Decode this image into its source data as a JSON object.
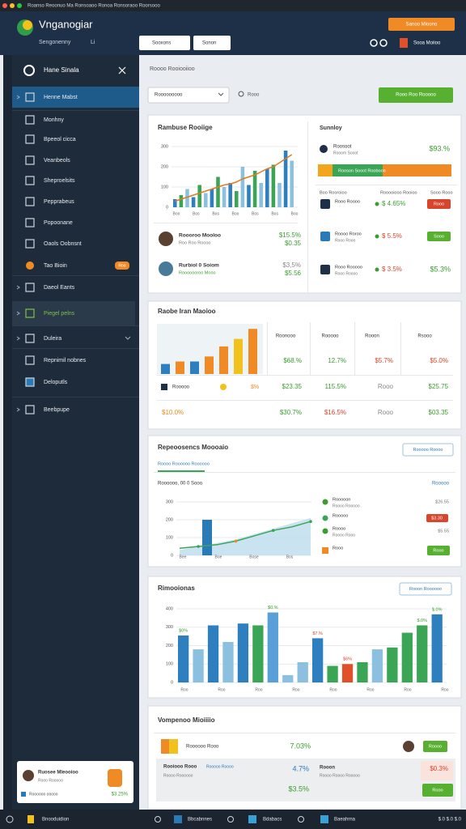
{
  "window": {
    "menu": "Roanso Reoonuo Ma Ronsoaoo Ronoa Ronsoraoo Roorsooo"
  },
  "header": {
    "title": "Vnganogiar",
    "subtitle": "Sengonenny",
    "subtitle_tag": "Li",
    "search": "Sooxons",
    "filter": "Sonon",
    "action": "Sanoo Mioono",
    "user": "Sooa Moiioo"
  },
  "sidebar": {
    "title": "Hane Sinala",
    "items": [
      "Henne Mabst",
      "Monhny",
      "Bpeeol cicca",
      "Veanbeols",
      "Sheproelsits",
      "Pepprabeus",
      "Popoonane",
      "Oaols Oobnsnt",
      "Tao Bioin",
      "Daeol Eants",
      "Piegel pelns",
      "Duleira",
      "Repnimil nobnes",
      "Deloputls",
      "Beebpupe"
    ],
    "badge": "Roo",
    "user": {
      "name": "Ruosee Mleooioo",
      "role": "Rooo Rooooo",
      "footer": "Roooooo ooooo",
      "value": "$3.25%"
    }
  },
  "main": {
    "breadcrumb": "Roooo Rooiooiioo",
    "select": "Rooooooooo",
    "search": "Rooo",
    "button": "Rooo Roo Rooooo"
  },
  "revenue": {
    "title": "Rambuse Rooiige",
    "ylim": [
      0,
      300
    ],
    "yticks": [
      0,
      100,
      200,
      300
    ],
    "categories": [
      "Boo",
      "Bos",
      "Bos",
      "Boo",
      "Bos",
      "Bos",
      "Boo"
    ],
    "values": [
      40,
      60,
      90,
      50,
      110,
      70,
      90,
      150,
      100,
      120,
      80,
      200,
      110,
      180,
      120,
      190,
      210,
      120,
      280,
      230
    ],
    "colors": [
      "#2e7fc0",
      "#3aa655",
      "#8cc0e0",
      "#2e7fc0",
      "#3aa655",
      "#8cc0e0",
      "#2e7fc0",
      "#3aa655",
      "#8cc0e0",
      "#2e7fc0",
      "#3aa655",
      "#8cc0e0",
      "#2e7fc0",
      "#3aa655",
      "#8cc0e0",
      "#2e7fc0",
      "#3aa655",
      "#8cc0e0",
      "#2e7fc0",
      "#8cc0e0"
    ],
    "line": [
      30,
      40,
      50,
      60,
      70,
      80,
      90,
      100,
      110,
      115,
      125,
      140,
      150,
      160,
      175,
      190,
      200,
      220,
      240,
      260
    ],
    "line_color": "#e07b24",
    "people": [
      {
        "name": "Roooroo Mooloo",
        "sub": "Roo Roo Roooo",
        "value": "$15.5%",
        "value2": "$0.35"
      },
      {
        "name": "Rurbiol 0 Soiom",
        "sub": "Rooooooroo Mooo",
        "value": "$3,5%",
        "value2": "$5.56"
      }
    ]
  },
  "summary": {
    "title": "Sunnloy",
    "top": {
      "name": "Roosoot",
      "sub": "Rooom Sooot",
      "value": "$93.%"
    },
    "progress": "Rooson Sooot Rooboon",
    "headers": [
      "Boo Rooroioo",
      "Rooooiooo Rooioo",
      "Sooo Rooo"
    ],
    "rows": [
      {
        "name": "Rooo Roooo",
        "value": "$ 4.65%",
        "button": "Rooo"
      },
      {
        "name": "Roooo Roroo",
        "sub": "Rooo Rooo",
        "value": "$ 5.5%",
        "button": "Sooo"
      },
      {
        "name": "Rooo Rooooo",
        "sub": "Rooo Roooo",
        "value": "$ 3.5%",
        "value2": "$5.3%"
      }
    ]
  },
  "market": {
    "title": "Raobe Iran Maoioo",
    "values": [
      20,
      25,
      25,
      35,
      55,
      70,
      90
    ],
    "colors": [
      "#2e7fc0",
      "#f08a24",
      "#2e7fc0",
      "#f08a24",
      "#f08a24",
      "#f3c11b",
      "#f08a24"
    ],
    "headers": [
      "Roonooo",
      "Rooooo",
      "Rooon",
      "Rsooo"
    ],
    "rows": [
      [
        null,
        "$68.%",
        "12.7%",
        "$5.7%",
        "$5.0%"
      ],
      [
        "Rooooo",
        "$23.35",
        "115.5%",
        "Rooo",
        "$25.75"
      ],
      [
        "$10.0%",
        "$30.7%",
        "$16.5%",
        "Rooo",
        "$03.35"
      ]
    ],
    "row2_tag": "$%"
  },
  "performance": {
    "title": "Repeoosencs Moooaio",
    "button": "Rooooo Roooo",
    "tab": "Roooo Roooooo Roooooo",
    "subtitle": "Roooooo, 00 0 Sooo",
    "link": "Rooooo",
    "ylim": [
      0,
      300
    ],
    "yticks": [
      0,
      100,
      200,
      300
    ],
    "categories": [
      "Bee",
      "Boe",
      "Bose",
      "Bos"
    ],
    "area": [
      30,
      50,
      70,
      90,
      120,
      150,
      180,
      210
    ],
    "line": [
      40,
      50,
      60,
      80,
      110,
      140,
      160,
      190
    ],
    "bar": 200,
    "legend": [
      {
        "name": "Rooooon",
        "sub": "Roooo Rooooo",
        "value": "$26.55"
      },
      {
        "name": "Rooooo",
        "value": "$3.30"
      },
      {
        "name": "Roooo",
        "sub": "Roooo Rooo",
        "value": "$5.55"
      },
      {
        "name": "Rooo",
        "value": "Rooo"
      }
    ]
  },
  "distribution": {
    "title": "Rimooionas",
    "button": "Rooon Roooooo",
    "ylim": [
      0,
      400
    ],
    "yticks": [
      0,
      100,
      200,
      300,
      400
    ],
    "categories": [
      "Roo",
      "Roo",
      "Roo",
      "Roo",
      "Roo",
      "Roo",
      "Roo",
      "Roo"
    ],
    "values": [
      255,
      180,
      310,
      220,
      320,
      310,
      380,
      40,
      110,
      240,
      90,
      100,
      110,
      180,
      190,
      270,
      310,
      370
    ],
    "colors": [
      "#2e7fc0",
      "#8cc0e0",
      "#2e7fc0",
      "#8cc0e0",
      "#2e7fc0",
      "#3aa655",
      "#5aa0d8",
      "#8cc0e0",
      "#8cc0e0",
      "#2e7fc0",
      "#3aa655",
      "#e0502a",
      "#3aa655",
      "#8cc0e0",
      "#3aa655",
      "#3aa655",
      "#3aa655",
      "#2e7fc0"
    ],
    "value_labels": [
      "$0%",
      null,
      null,
      null,
      null,
      null,
      "$0.%",
      null,
      null,
      "$7.%",
      null,
      "$6%",
      null,
      null,
      null,
      null,
      "$.0%",
      "$.0%"
    ]
  },
  "compare": {
    "title": "Vompenoo Mioiiiio",
    "row1": {
      "name": "Roooooo Rooo",
      "value": "7.03%",
      "button": "Roooo"
    },
    "row2": {
      "name": "Rooiooo Rooo",
      "tag": "Rooooo Roooo",
      "sub": "Roooo Roooooo",
      "value": "4.7%",
      "value2": "$3.5%",
      "label": "Rooon",
      "label_sub": "Roooo Roooo Rooooo",
      "badge": "$0.3%",
      "button": "Rooo"
    }
  },
  "taskbar": {
    "items": [
      "Bnooduidion",
      "Bbcabnnes",
      "Bdabacs",
      "Baeahrna"
    ],
    "right": "$.0 $.0 $.0"
  }
}
